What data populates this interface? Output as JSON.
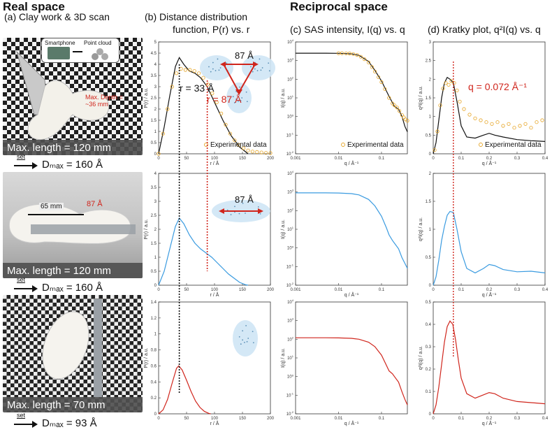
{
  "headers": {
    "real_space": "Real space",
    "reciprocal_space": "Reciprocal space",
    "panel_a": "(a)  Clay work & 3D scan",
    "panel_b_line1": "(b)   Distance distribution",
    "panel_b_line2": "function, P(r) vs. r",
    "panel_c": "(c) SAS intensity, I(q) vs. q",
    "panel_d": "(d) Kratky plot, q²I(q) vs. q"
  },
  "photos": [
    {
      "caption": "Max. length = 120 mm",
      "dmax": "Dₘₐₓ = 160 Å",
      "set": "set",
      "inset_left": "Smartphone",
      "inset_right": "Point cloud",
      "depth_note": "Max. Depth = ~36 mm"
    },
    {
      "caption": "Max. length = 120 mm",
      "dmax": "Dₘₐₓ = 160 Å",
      "set": "set",
      "scale_mm": "65 mm",
      "scale_A": "87 Å"
    },
    {
      "caption": "Max. length = 70 mm",
      "dmax": "Dₘₐₓ = 93 Å",
      "set": "set"
    }
  ],
  "annotations": {
    "r33": "r = 33 Å",
    "r87": "r = 87 Å",
    "dist87": "87 Å",
    "q_peak": "q = 0.072 Å⁻¹",
    "experimental": "Experimental data"
  },
  "colors": {
    "black": "#111111",
    "orange": "#e6a526",
    "blue": "#3a9be0",
    "red": "#d0251c",
    "shape": "#cfe6f5"
  },
  "chart_data": [
    {
      "type": "line",
      "panel": "b",
      "row": 1,
      "xlabel": "r / Å",
      "ylabel": "P(r) / a.u.",
      "xlim": [
        0,
        200
      ],
      "ylim": [
        0,
        5
      ],
      "xticks": [
        0,
        50,
        100,
        150,
        200
      ],
      "yticks": [
        0,
        0.5,
        1,
        1.5,
        2,
        2.5,
        3,
        3.5,
        4,
        4.5,
        5
      ],
      "series": [
        {
          "name": "model",
          "color": "#111111",
          "style": "line",
          "x": [
            0,
            10,
            20,
            30,
            37,
            45,
            55,
            65,
            75,
            87,
            100,
            115,
            130,
            145,
            160
          ],
          "y": [
            0,
            1.2,
            2.6,
            3.9,
            4.3,
            4.0,
            3.7,
            3.6,
            3.4,
            3.0,
            2.3,
            1.5,
            0.8,
            0.3,
            0
          ]
        },
        {
          "name": "Experimental data",
          "color": "#e6a526",
          "style": "points",
          "x": [
            0,
            8,
            16,
            24,
            32,
            40,
            48,
            56,
            64,
            72,
            80,
            88,
            96,
            104,
            112,
            120,
            128,
            136,
            144,
            152,
            160,
            168,
            176,
            184,
            192,
            200
          ],
          "y": [
            0,
            0.9,
            2.0,
            3.0,
            3.6,
            3.8,
            3.75,
            3.75,
            3.7,
            3.6,
            3.4,
            3.1,
            2.7,
            2.3,
            1.8,
            1.3,
            0.9,
            0.6,
            0.4,
            0.25,
            0.15,
            0.1,
            0.08,
            0.06,
            0.04,
            0.03
          ]
        }
      ]
    },
    {
      "type": "line",
      "panel": "b",
      "row": 2,
      "xlabel": "r / Å",
      "ylabel": "P(r) / a.u.",
      "xlim": [
        0,
        200
      ],
      "ylim": [
        0,
        4
      ],
      "xticks": [
        0,
        50,
        100,
        150,
        200
      ],
      "yticks": [
        0,
        0.5,
        1,
        1.5,
        2,
        2.5,
        3,
        3.5,
        4
      ],
      "series": [
        {
          "name": "model",
          "color": "#3a9be0",
          "style": "line",
          "x": [
            0,
            10,
            20,
            30,
            37,
            45,
            55,
            65,
            75,
            85,
            95,
            105,
            115,
            125,
            135,
            145,
            155,
            160
          ],
          "y": [
            0,
            0.5,
            1.3,
            2.1,
            2.4,
            2.2,
            1.8,
            1.5,
            1.3,
            1.15,
            1.0,
            0.8,
            0.6,
            0.4,
            0.25,
            0.1,
            0.02,
            0
          ]
        }
      ]
    },
    {
      "type": "line",
      "panel": "b",
      "row": 3,
      "xlabel": "r / Å",
      "ylabel": "P(r) / a.u.",
      "xlim": [
        0,
        200
      ],
      "ylim": [
        0,
        1.4
      ],
      "xticks": [
        0,
        50,
        100,
        150,
        200
      ],
      "yticks": [
        0,
        0.2,
        0.4,
        0.6,
        0.8,
        1,
        1.2,
        1.4
      ],
      "series": [
        {
          "name": "model",
          "color": "#d0251c",
          "style": "line",
          "x": [
            0,
            8,
            16,
            24,
            32,
            36,
            42,
            50,
            58,
            66,
            74,
            82,
            90,
            93
          ],
          "y": [
            0,
            0.05,
            0.18,
            0.38,
            0.57,
            0.6,
            0.55,
            0.42,
            0.28,
            0.16,
            0.08,
            0.03,
            0.005,
            0
          ]
        }
      ]
    },
    {
      "type": "line",
      "panel": "c",
      "row": 1,
      "xlabel": "q / Å⁻¹",
      "ylabel": "I(q) / a.u.",
      "xscale": "log",
      "yscale": "log",
      "xlim": [
        0.001,
        0.4
      ],
      "ylim": [
        0.01,
        10000
      ],
      "xticks": [
        0.001,
        0.01,
        0.1
      ],
      "series": [
        {
          "name": "model",
          "color": "#111111",
          "style": "line",
          "x": [
            0.001,
            0.005,
            0.01,
            0.02,
            0.03,
            0.05,
            0.07,
            0.1,
            0.15,
            0.2,
            0.25,
            0.3,
            0.35,
            0.4
          ],
          "y": [
            2500,
            2500,
            2450,
            2300,
            1900,
            900,
            300,
            80,
            12,
            3.5,
            2.5,
            1.0,
            0.3,
            0.15
          ]
        },
        {
          "name": "Experimental data",
          "color": "#e6a526",
          "style": "points",
          "x": [
            0.01,
            0.012,
            0.015,
            0.018,
            0.022,
            0.027,
            0.033,
            0.04,
            0.05,
            0.06,
            0.07,
            0.085,
            0.1,
            0.12,
            0.15,
            0.18,
            0.2,
            0.23,
            0.26,
            0.3,
            0.33,
            0.36,
            0.4
          ],
          "y": [
            2500,
            2480,
            2450,
            2400,
            2250,
            2000,
            1600,
            1200,
            800,
            450,
            260,
            130,
            70,
            30,
            10,
            5,
            4,
            3,
            2,
            1.2,
            0.9,
            0.7,
            0.6
          ]
        }
      ]
    },
    {
      "type": "line",
      "panel": "c",
      "row": 2,
      "xlabel": "q / Å⁻¹",
      "ylabel": "I(q) / a.u.",
      "xscale": "log",
      "yscale": "log",
      "xlim": [
        0.001,
        0.4
      ],
      "ylim": [
        0.01,
        10000
      ],
      "xticks": [
        0.001,
        0.01,
        0.1
      ],
      "series": [
        {
          "name": "model",
          "color": "#3a9be0",
          "style": "line",
          "x": [
            0.001,
            0.005,
            0.01,
            0.02,
            0.03,
            0.05,
            0.07,
            0.1,
            0.13,
            0.15,
            0.18,
            0.2,
            0.25,
            0.3,
            0.35,
            0.4
          ],
          "y": [
            900,
            900,
            880,
            820,
            700,
            400,
            180,
            50,
            12,
            5,
            2.5,
            1.8,
            0.9,
            0.3,
            0.15,
            0.08
          ]
        }
      ]
    },
    {
      "type": "line",
      "panel": "c",
      "row": 3,
      "xlabel": "q / Å⁻¹",
      "ylabel": "I(q) / a.u.",
      "xscale": "log",
      "yscale": "log",
      "xlim": [
        0.001,
        0.4
      ],
      "ylim": [
        0.01,
        10000
      ],
      "xticks": [
        0.001,
        0.01,
        0.1
      ],
      "series": [
        {
          "name": "model",
          "color": "#d0251c",
          "style": "line",
          "x": [
            0.001,
            0.005,
            0.01,
            0.02,
            0.03,
            0.05,
            0.07,
            0.1,
            0.13,
            0.15,
            0.18,
            0.2,
            0.25,
            0.3,
            0.35,
            0.4
          ],
          "y": [
            120,
            120,
            118,
            112,
            100,
            70,
            40,
            14,
            4,
            2,
            1.4,
            1.0,
            0.5,
            0.15,
            0.06,
            0.03
          ]
        }
      ]
    },
    {
      "type": "line",
      "panel": "d",
      "row": 1,
      "xlabel": "q / Å⁻¹",
      "ylabel": "q²I(q) / a.u.",
      "xlim": [
        0,
        0.4
      ],
      "ylim": [
        0,
        3
      ],
      "xticks": [
        0,
        0.1,
        0.2,
        0.3,
        0.4
      ],
      "yticks": [
        0,
        0.5,
        1,
        1.5,
        2,
        2.5,
        3
      ],
      "series": [
        {
          "name": "model",
          "color": "#111111",
          "style": "line",
          "x": [
            0,
            0.01,
            0.02,
            0.03,
            0.04,
            0.05,
            0.06,
            0.072,
            0.085,
            0.1,
            0.12,
            0.15,
            0.18,
            0.2,
            0.22,
            0.25,
            0.3,
            0.35,
            0.4
          ],
          "y": [
            0,
            0.3,
            0.9,
            1.5,
            1.9,
            2.05,
            2.0,
            1.9,
            1.4,
            0.75,
            0.45,
            0.42,
            0.5,
            0.55,
            0.5,
            0.45,
            0.38,
            0.35,
            0.33
          ]
        },
        {
          "name": "Experimental data",
          "color": "#e6a526",
          "style": "points",
          "x": [
            0.005,
            0.015,
            0.025,
            0.035,
            0.045,
            0.055,
            0.065,
            0.075,
            0.085,
            0.095,
            0.11,
            0.13,
            0.15,
            0.17,
            0.19,
            0.21,
            0.23,
            0.25,
            0.27,
            0.29,
            0.31,
            0.33,
            0.35,
            0.37,
            0.39
          ],
          "y": [
            0.1,
            0.6,
            1.3,
            1.75,
            1.9,
            1.85,
            1.95,
            1.9,
            1.7,
            1.4,
            1.2,
            1.05,
            0.95,
            0.9,
            0.85,
            0.8,
            0.85,
            0.75,
            0.8,
            0.7,
            0.75,
            0.8,
            0.7,
            0.85,
            0.9
          ]
        }
      ]
    },
    {
      "type": "line",
      "panel": "d",
      "row": 2,
      "xlabel": "q / Å⁻¹",
      "ylabel": "q²I(q) / a.u.",
      "xlim": [
        0,
        0.4
      ],
      "ylim": [
        0,
        2
      ],
      "xticks": [
        0,
        0.1,
        0.2,
        0.3,
        0.4
      ],
      "yticks": [
        0,
        0.5,
        1,
        1.5,
        2
      ],
      "series": [
        {
          "name": "model",
          "color": "#3a9be0",
          "style": "line",
          "x": [
            0,
            0.01,
            0.02,
            0.03,
            0.04,
            0.05,
            0.06,
            0.072,
            0.085,
            0.1,
            0.12,
            0.15,
            0.18,
            0.2,
            0.22,
            0.25,
            0.3,
            0.35,
            0.4
          ],
          "y": [
            0,
            0.15,
            0.45,
            0.8,
            1.05,
            1.25,
            1.32,
            1.3,
            1.0,
            0.6,
            0.3,
            0.22,
            0.3,
            0.37,
            0.35,
            0.28,
            0.24,
            0.25,
            0.22
          ]
        }
      ]
    },
    {
      "type": "line",
      "panel": "d",
      "row": 3,
      "xlabel": "q / Å⁻¹",
      "ylabel": "q²I(q) / a.u.",
      "xlim": [
        0,
        0.4
      ],
      "ylim": [
        0,
        0.5
      ],
      "xticks": [
        0,
        0.1,
        0.2,
        0.3,
        0.4
      ],
      "yticks": [
        0,
        0.1,
        0.2,
        0.3,
        0.4,
        0.5
      ],
      "series": [
        {
          "name": "model",
          "color": "#d0251c",
          "style": "line",
          "x": [
            0,
            0.01,
            0.02,
            0.03,
            0.04,
            0.05,
            0.06,
            0.07,
            0.08,
            0.09,
            0.1,
            0.12,
            0.15,
            0.18,
            0.2,
            0.22,
            0.25,
            0.3,
            0.35,
            0.4
          ],
          "y": [
            0,
            0.04,
            0.12,
            0.22,
            0.32,
            0.39,
            0.415,
            0.4,
            0.33,
            0.24,
            0.16,
            0.09,
            0.07,
            0.085,
            0.095,
            0.09,
            0.07,
            0.055,
            0.05,
            0.045
          ]
        }
      ]
    }
  ]
}
